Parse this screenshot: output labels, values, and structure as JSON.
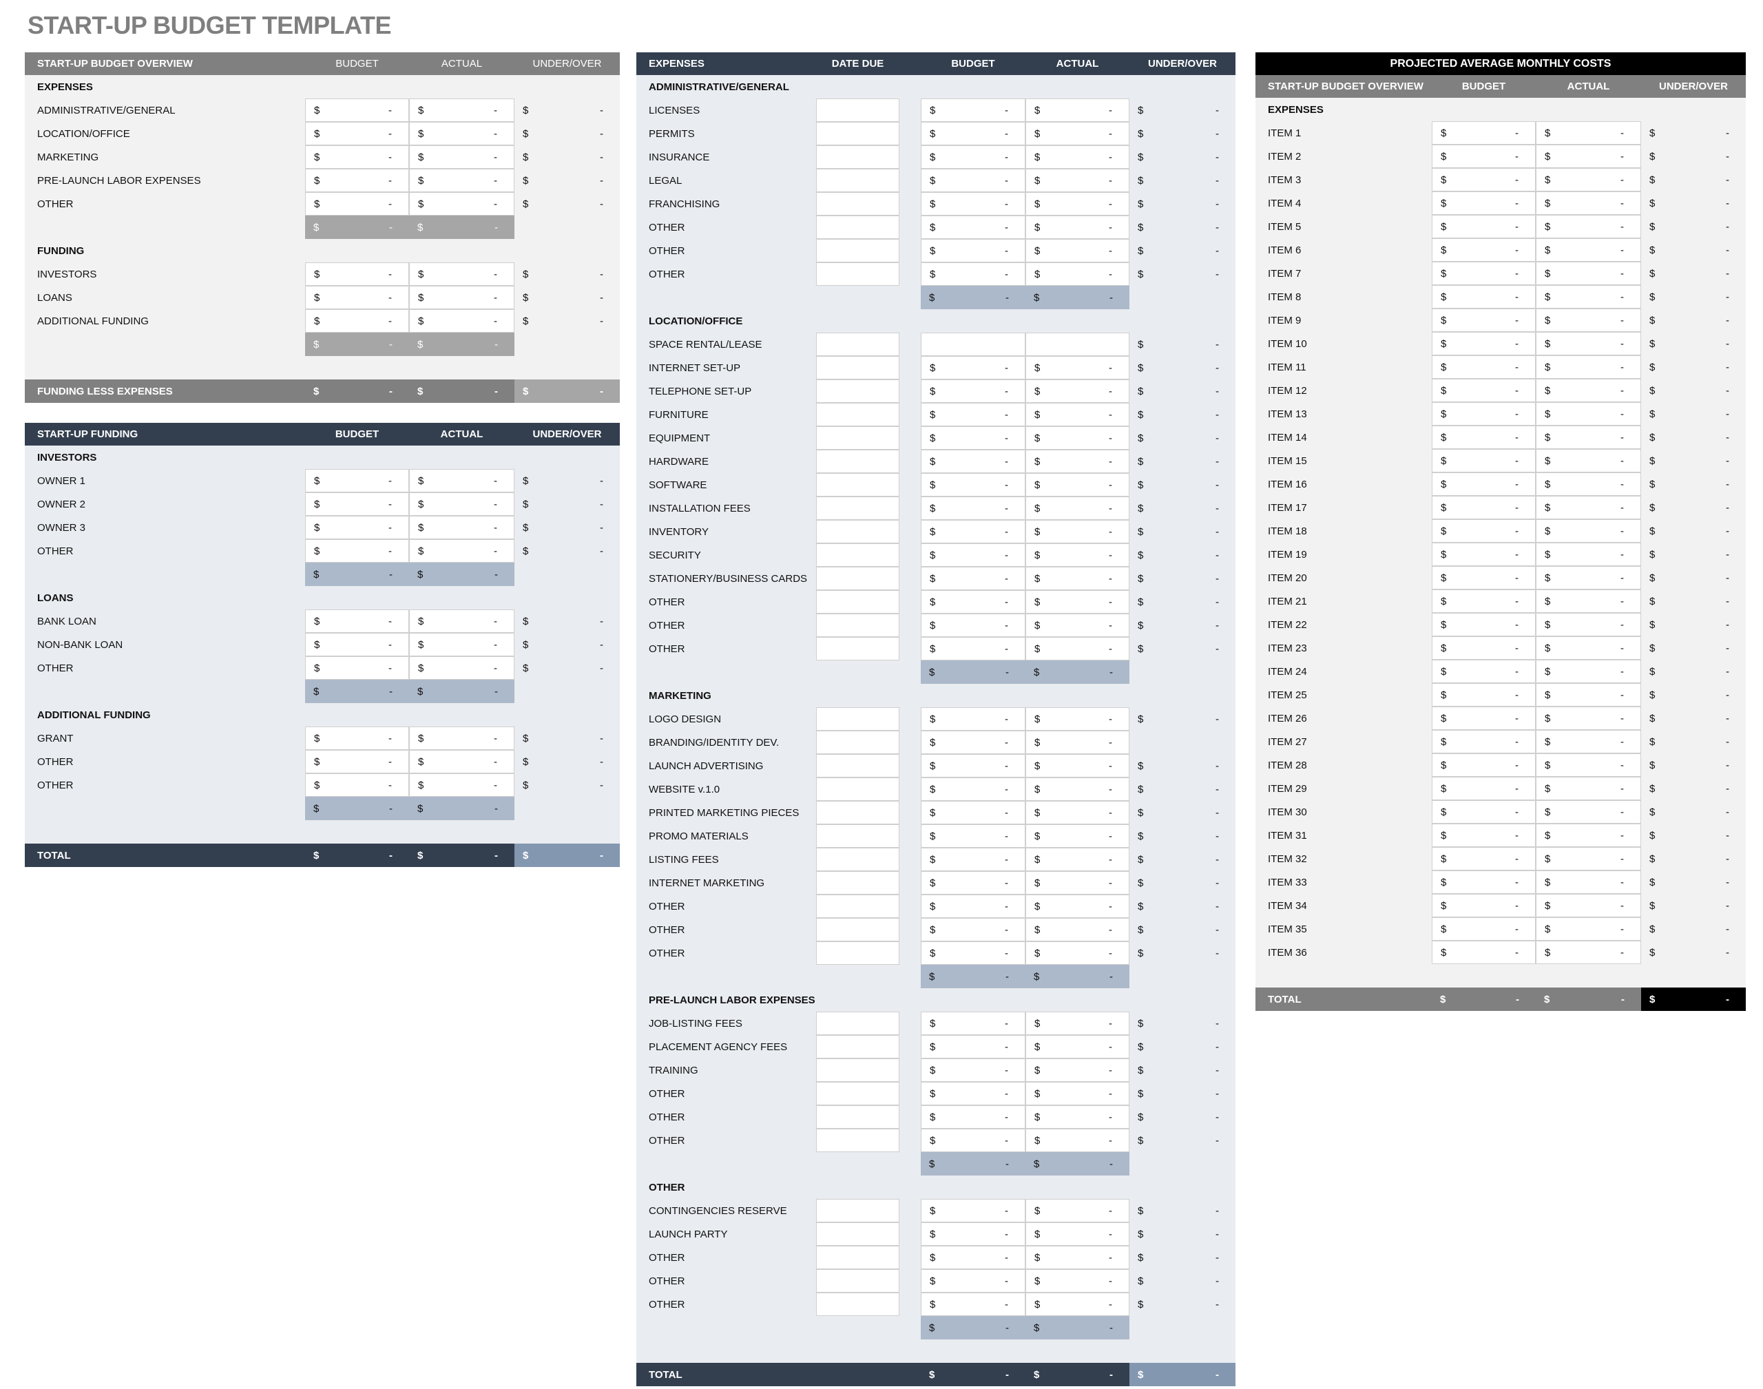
{
  "title": "START-UP BUDGET TEMPLATE",
  "currency": "$",
  "empty_value": "-",
  "colors": {
    "gray": {
      "header": "#808080",
      "body": "#f2f2f2",
      "subtotal": "#a6a6a6",
      "subtotal_text": "#ffffff",
      "total": "#808080",
      "total_uo": "#a6a6a6"
    },
    "slate": {
      "header": "#333f4f",
      "body": "#e9ecf0",
      "subtotal": "#acb9ca",
      "subtotal_text": "#111111",
      "total": "#333f4f",
      "total_uo": "#8497b0"
    },
    "mono": {
      "header": "#808080",
      "body": "#f2f2f2",
      "subtotal": "#a6a6a6",
      "subtotal_text": "#ffffff",
      "total": "#808080",
      "total_uo": "#000000"
    }
  },
  "panels": [
    {
      "theme": "gray",
      "header": {
        "label": "START-UP BUDGET OVERVIEW",
        "budget": "BUDGET",
        "actual": "ACTUAL",
        "under_over": "UNDER/OVER"
      },
      "sections": [
        {
          "heading": "EXPENSES",
          "subtotal": true,
          "rows": [
            {
              "label": "ADMINISTRATIVE/GENERAL"
            },
            {
              "label": "LOCATION/OFFICE"
            },
            {
              "label": "MARKETING"
            },
            {
              "label": "PRE-LAUNCH LABOR EXPENSES"
            },
            {
              "label": "OTHER"
            }
          ]
        },
        {
          "heading": "FUNDING",
          "subtotal": true,
          "rows": [
            {
              "label": "INVESTORS"
            },
            {
              "label": "LOANS"
            },
            {
              "label": "ADDITIONAL FUNDING"
            }
          ]
        }
      ],
      "blank_before_total": 1,
      "total": {
        "label": "FUNDING LESS EXPENSES"
      }
    },
    {
      "theme": "slate",
      "header": {
        "label": "START-UP FUNDING",
        "budget": "BUDGET",
        "actual": "ACTUAL",
        "under_over": "UNDER/OVER"
      },
      "sections": [
        {
          "heading": "INVESTORS",
          "subtotal": true,
          "rows": [
            {
              "label": "OWNER 1"
            },
            {
              "label": "OWNER 2"
            },
            {
              "label": "OWNER 3"
            },
            {
              "label": "OTHER"
            }
          ]
        },
        {
          "heading": "LOANS",
          "subtotal": true,
          "rows": [
            {
              "label": "BANK LOAN"
            },
            {
              "label": "NON-BANK LOAN"
            },
            {
              "label": "OTHER"
            }
          ]
        },
        {
          "heading": "ADDITIONAL FUNDING",
          "subtotal": true,
          "rows": [
            {
              "label": "GRANT"
            },
            {
              "label": "OTHER"
            },
            {
              "label": "OTHER"
            }
          ]
        }
      ],
      "blank_before_total": 1,
      "total": {
        "label": "TOTAL"
      }
    },
    {
      "theme": "slate",
      "has_date": true,
      "header": {
        "label": "EXPENSES",
        "date_due": "DATE DUE",
        "budget": "BUDGET",
        "actual": "ACTUAL",
        "under_over": "UNDER/OVER"
      },
      "sections": [
        {
          "heading": "ADMINISTRATIVE/GENERAL",
          "subtotal": true,
          "rows": [
            {
              "label": "LICENSES"
            },
            {
              "label": "PERMITS"
            },
            {
              "label": "INSURANCE"
            },
            {
              "label": "LEGAL"
            },
            {
              "label": "FRANCHISING"
            },
            {
              "label": "OTHER"
            },
            {
              "label": "OTHER"
            },
            {
              "label": "OTHER"
            }
          ]
        },
        {
          "heading": "LOCATION/OFFICE",
          "subtotal": true,
          "rows": [
            {
              "label": "SPACE RENTAL/LEASE",
              "show_budget_actual": false
            },
            {
              "label": "INTERNET SET-UP"
            },
            {
              "label": "TELEPHONE SET-UP"
            },
            {
              "label": "FURNITURE"
            },
            {
              "label": "EQUIPMENT"
            },
            {
              "label": "HARDWARE"
            },
            {
              "label": "SOFTWARE"
            },
            {
              "label": "INSTALLATION FEES"
            },
            {
              "label": "INVENTORY"
            },
            {
              "label": "SECURITY"
            },
            {
              "label": "STATIONERY/BUSINESS CARDS"
            },
            {
              "label": "OTHER"
            },
            {
              "label": "OTHER"
            },
            {
              "label": "OTHER"
            }
          ]
        },
        {
          "heading": "MARKETING",
          "subtotal": true,
          "rows": [
            {
              "label": "LOGO DESIGN"
            },
            {
              "label": "BRANDING/IDENTITY DEV.",
              "show_under_over": false
            },
            {
              "label": "LAUNCH ADVERTISING"
            },
            {
              "label": "WEBSITE v.1.0"
            },
            {
              "label": "PRINTED MARKETING PIECES"
            },
            {
              "label": "PROMO MATERIALS"
            },
            {
              "label": "LISTING FEES"
            },
            {
              "label": "INTERNET MARKETING"
            },
            {
              "label": "OTHER"
            },
            {
              "label": "OTHER"
            },
            {
              "label": "OTHER"
            }
          ]
        },
        {
          "heading": "PRE-LAUNCH LABOR EXPENSES",
          "subtotal": true,
          "rows": [
            {
              "label": "JOB-LISTING FEES"
            },
            {
              "label": "PLACEMENT AGENCY FEES"
            },
            {
              "label": "TRAINING"
            },
            {
              "label": "OTHER"
            },
            {
              "label": "OTHER"
            },
            {
              "label": "OTHER"
            }
          ]
        },
        {
          "heading": "OTHER",
          "subtotal": true,
          "rows": [
            {
              "label": "CONTINGENCIES RESERVE"
            },
            {
              "label": "LAUNCH PARTY"
            },
            {
              "label": "OTHER"
            },
            {
              "label": "OTHER"
            },
            {
              "label": "OTHER"
            }
          ]
        }
      ],
      "blank_before_total": 1,
      "total": {
        "label": "TOTAL"
      }
    },
    {
      "theme": "mono",
      "title": "PROJECTED AVERAGE MONTHLY COSTS",
      "header": {
        "label": "START-UP BUDGET OVERVIEW",
        "budget": "BUDGET",
        "actual": "ACTUAL",
        "under_over": "UNDER/OVER"
      },
      "sections": [
        {
          "heading": "EXPENSES",
          "subtotal": false,
          "rows": [
            {
              "label": "ITEM 1"
            },
            {
              "label": "ITEM 2"
            },
            {
              "label": "ITEM 3"
            },
            {
              "label": "ITEM 4"
            },
            {
              "label": "ITEM 5"
            },
            {
              "label": "ITEM 6"
            },
            {
              "label": "ITEM 7"
            },
            {
              "label": "ITEM 8"
            },
            {
              "label": "ITEM 9"
            },
            {
              "label": "ITEM 10"
            },
            {
              "label": "ITEM 11"
            },
            {
              "label": "ITEM 12"
            },
            {
              "label": "ITEM 13"
            },
            {
              "label": "ITEM 14"
            },
            {
              "label": "ITEM 15"
            },
            {
              "label": "ITEM 16"
            },
            {
              "label": "ITEM 17"
            },
            {
              "label": "ITEM 18"
            },
            {
              "label": "ITEM 19"
            },
            {
              "label": "ITEM 20"
            },
            {
              "label": "ITEM 21"
            },
            {
              "label": "ITEM 22"
            },
            {
              "label": "ITEM 23"
            },
            {
              "label": "ITEM 24"
            },
            {
              "label": "ITEM 25"
            },
            {
              "label": "ITEM 26"
            },
            {
              "label": "ITEM 27"
            },
            {
              "label": "ITEM 28"
            },
            {
              "label": "ITEM 29"
            },
            {
              "label": "ITEM 30"
            },
            {
              "label": "ITEM 31"
            },
            {
              "label": "ITEM 32"
            },
            {
              "label": "ITEM 33"
            },
            {
              "label": "ITEM 34"
            },
            {
              "label": "ITEM 35"
            },
            {
              "label": "ITEM 36"
            }
          ]
        }
      ],
      "blank_before_total": 1,
      "total": {
        "label": "TOTAL"
      }
    }
  ]
}
